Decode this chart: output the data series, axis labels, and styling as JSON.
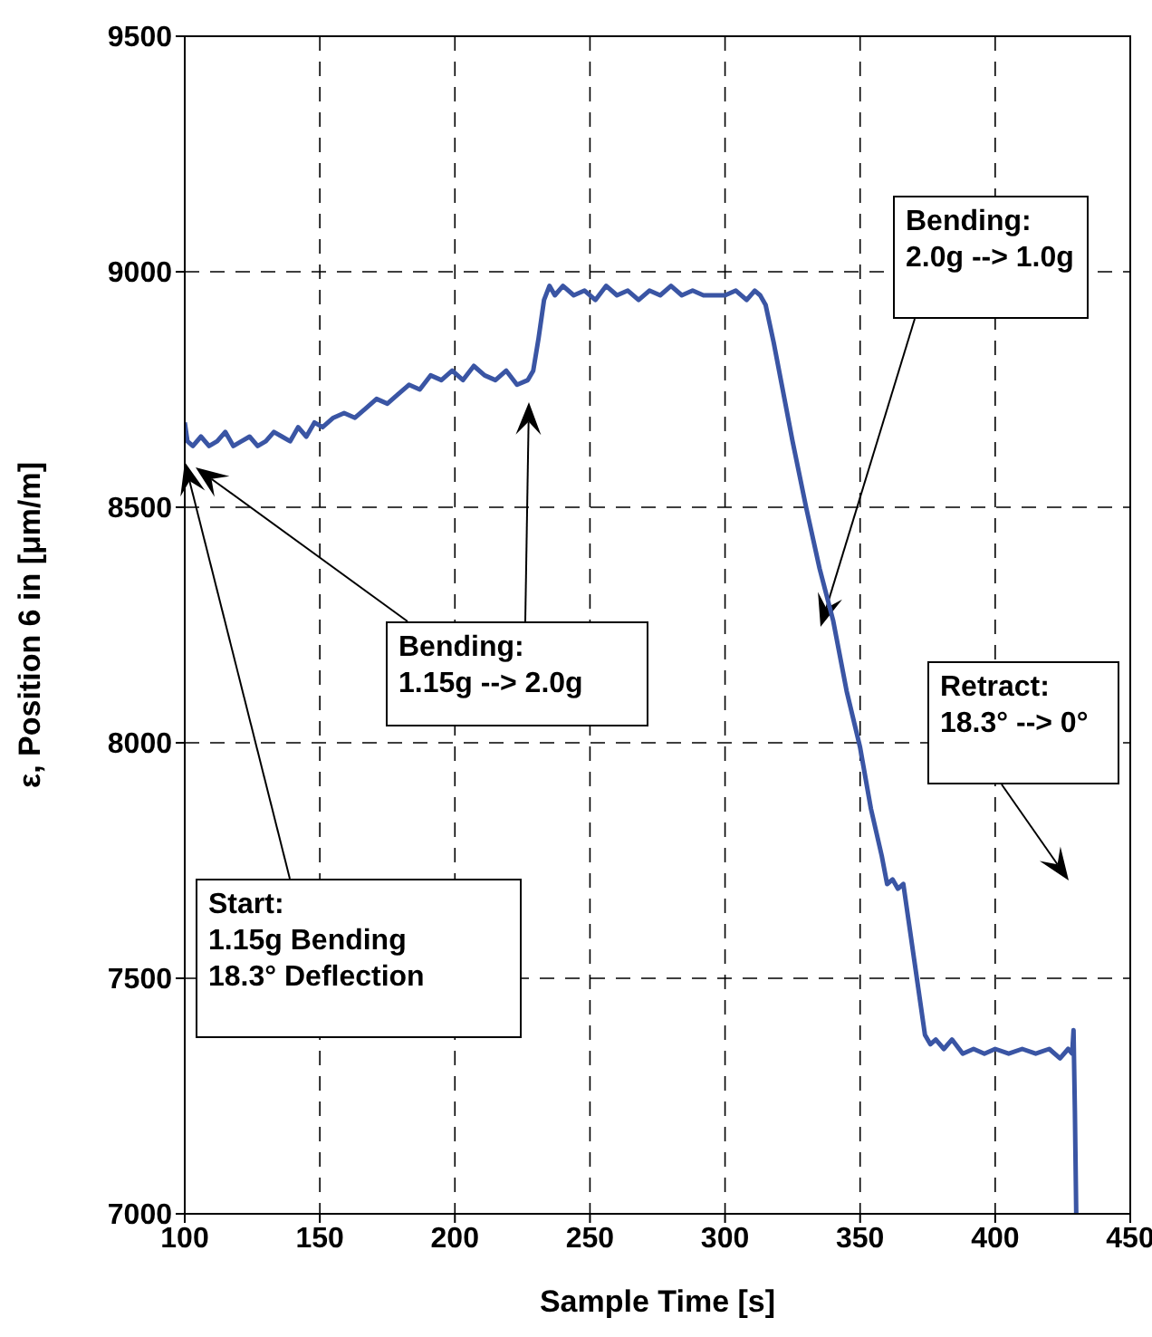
{
  "chart_data": {
    "type": "line",
    "xlabel": "Sample Time [s]",
    "ylabel": "ε, Position 6 in [μm/m]",
    "xlim": [
      100,
      450
    ],
    "xticks": [
      100,
      150,
      200,
      250,
      300,
      350,
      400,
      450
    ],
    "ylim": [
      7000,
      9500
    ],
    "yticks": [
      7000,
      7500,
      8000,
      8500,
      9000,
      9500
    ],
    "grid": true,
    "legend": false,
    "marker": "none",
    "line_style": "solid",
    "series": [
      {
        "color": "#3a55a4",
        "x": [
          100,
          101,
          103,
          106,
          109,
          112,
          115,
          118,
          121,
          124,
          127,
          130,
          133,
          136,
          139,
          142,
          145,
          148,
          151,
          155,
          159,
          163,
          167,
          171,
          175,
          179,
          183,
          187,
          191,
          195,
          199,
          203,
          207,
          211,
          215,
          219,
          223,
          227,
          229,
          231,
          233,
          235,
          237,
          240,
          244,
          248,
          252,
          256,
          260,
          264,
          268,
          272,
          276,
          280,
          284,
          288,
          292,
          296,
          300,
          304,
          308,
          311,
          313,
          315,
          318,
          321,
          325,
          330,
          335,
          340,
          345,
          350,
          354,
          358,
          360,
          362,
          364,
          366,
          368,
          370,
          372,
          374,
          376,
          378,
          381,
          384,
          388,
          392,
          396,
          400,
          405,
          410,
          415,
          420,
          424,
          427,
          428.5,
          429,
          429.5,
          430
        ],
        "values": [
          8680,
          8640,
          8630,
          8650,
          8630,
          8640,
          8660,
          8630,
          8640,
          8650,
          8630,
          8640,
          8660,
          8650,
          8640,
          8670,
          8650,
          8680,
          8670,
          8690,
          8700,
          8690,
          8710,
          8730,
          8720,
          8740,
          8760,
          8750,
          8780,
          8770,
          8790,
          8770,
          8800,
          8780,
          8770,
          8790,
          8760,
          8770,
          8790,
          8860,
          8940,
          8970,
          8950,
          8970,
          8950,
          8960,
          8940,
          8970,
          8950,
          8960,
          8940,
          8960,
          8950,
          8970,
          8950,
          8960,
          8950,
          8950,
          8950,
          8960,
          8940,
          8960,
          8950,
          8930,
          8850,
          8760,
          8640,
          8500,
          8370,
          8260,
          8110,
          7990,
          7860,
          7760,
          7700,
          7710,
          7690,
          7700,
          7620,
          7540,
          7460,
          7380,
          7360,
          7370,
          7350,
          7370,
          7340,
          7350,
          7340,
          7350,
          7340,
          7350,
          7340,
          7350,
          7330,
          7350,
          7340,
          7390,
          7220,
          7000
        ]
      }
    ],
    "annotations": [
      "Start:\n1.15g Bending\n18.3° Deflection",
      "Bending:\n1.15g --> 2.0g",
      "Bending:\n2.0g --> 1.0g",
      "Retract:\n18.3° --> 0°"
    ]
  }
}
